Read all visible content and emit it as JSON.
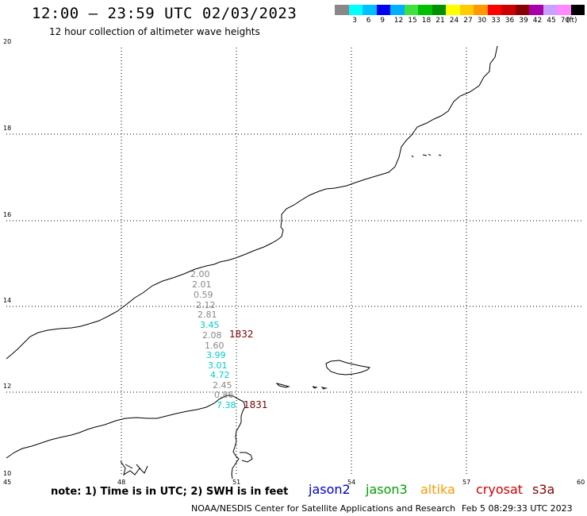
{
  "title": "12:00 – 23:59 UTC 02/03/2023",
  "subtitle": "12 hour collection of altimeter wave heights",
  "legend": {
    "unit": "(ft)",
    "swatches": [
      {
        "color": "#888888",
        "label": ""
      },
      {
        "color": "#00ffff",
        "label": "3"
      },
      {
        "color": "#00bfff",
        "label": "6"
      },
      {
        "color": "#0000ee",
        "label": "9"
      },
      {
        "color": "#00b0ff",
        "label": "12"
      },
      {
        "color": "#40e040",
        "label": "15"
      },
      {
        "color": "#00c000",
        "label": "18"
      },
      {
        "color": "#009000",
        "label": "21"
      },
      {
        "color": "#ffff00",
        "label": "24"
      },
      {
        "color": "#ffcc00",
        "label": "27"
      },
      {
        "color": "#ff9900",
        "label": "30"
      },
      {
        "color": "#ff0000",
        "label": "33"
      },
      {
        "color": "#cc0000",
        "label": "36"
      },
      {
        "color": "#880000",
        "label": "39"
      },
      {
        "color": "#aa00aa",
        "label": "42"
      },
      {
        "color": "#c8a0ff",
        "label": "45"
      },
      {
        "color": "#ff88ff",
        "label": "70"
      },
      {
        "color": "#000000",
        "label": ""
      }
    ]
  },
  "axes": {
    "lon_ticks": [
      "45",
      "48",
      "51",
      "54",
      "57",
      "60"
    ],
    "lat_ticks": [
      "20",
      "18",
      "16",
      "14",
      "12",
      "10"
    ]
  },
  "observations": [
    {
      "value": "2.00",
      "color": "#888888"
    },
    {
      "value": "2.01",
      "color": "#888888"
    },
    {
      "value": "0.59",
      "color": "#888888"
    },
    {
      "value": "2.12",
      "color": "#888888"
    },
    {
      "value": "2.81",
      "color": "#888888"
    },
    {
      "value": "3.45",
      "color": "#00cccc"
    },
    {
      "value": "2.08",
      "color": "#888888"
    },
    {
      "value": "1.60",
      "color": "#888888"
    },
    {
      "value": "3.99",
      "color": "#00cccc"
    },
    {
      "value": "3.01",
      "color": "#00cccc"
    },
    {
      "value": "4.72",
      "color": "#00cccc"
    },
    {
      "value": "2.45",
      "color": "#888888"
    },
    {
      "value": "0.86",
      "color": "#888888"
    },
    {
      "value": "7.38",
      "color": "#00cccc"
    }
  ],
  "tracks": [
    "1832",
    "1831"
  ],
  "note": "note: 1) Time is in UTC; 2) SWH is in feet",
  "satellites": [
    {
      "name": "jason2",
      "color": "#0000cc"
    },
    {
      "name": "jason3",
      "color": "#00a000"
    },
    {
      "name": "altika",
      "color": "#ff9900"
    },
    {
      "name": "cryosat",
      "color": "#cc0000"
    },
    {
      "name": "s3a",
      "color": "#880000"
    }
  ],
  "credit": "NOAA/NESDIS Center for Satellite Applications and Research",
  "timestamp": "Feb  5 08:29:33 UTC 2023"
}
